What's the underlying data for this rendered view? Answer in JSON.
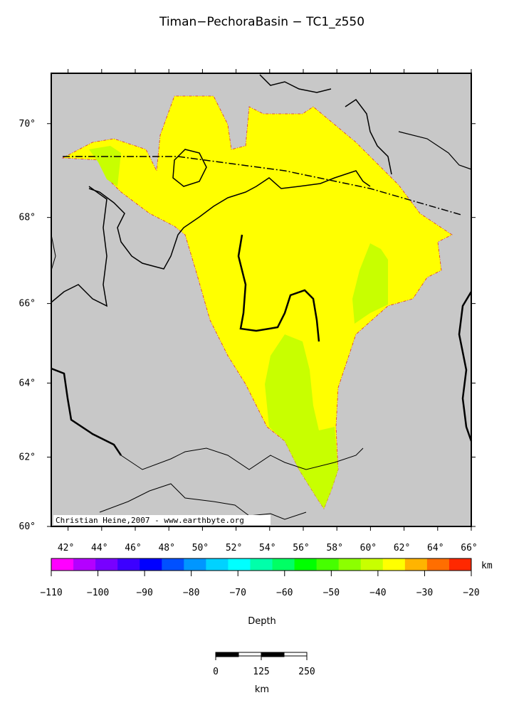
{
  "title": "Timan−PechoraBasin − TC1_z550",
  "map": {
    "xlim": [
      41,
      66
    ],
    "ylim": [
      60,
      71
    ],
    "lon_ticks": [
      {
        "value": 42,
        "label": "42°"
      },
      {
        "value": 44,
        "label": "44°"
      },
      {
        "value": 46,
        "label": "46°"
      },
      {
        "value": 48,
        "label": "48°"
      },
      {
        "value": 50,
        "label": "50°"
      },
      {
        "value": 52,
        "label": "52°"
      },
      {
        "value": 54,
        "label": "54°"
      },
      {
        "value": 56,
        "label": "56°"
      },
      {
        "value": 58,
        "label": "58°"
      },
      {
        "value": 60,
        "label": "60°"
      },
      {
        "value": 62,
        "label": "62°"
      },
      {
        "value": 64,
        "label": "64°"
      },
      {
        "value": 66,
        "label": "66°"
      }
    ],
    "lat_ticks": [
      {
        "value": 60,
        "label": "60°"
      },
      {
        "value": 62,
        "label": "62°"
      },
      {
        "value": 64,
        "label": "64°"
      },
      {
        "value": 66,
        "label": "66°"
      },
      {
        "value": 68,
        "label": "68°"
      },
      {
        "value": 70,
        "label": "70°"
      }
    ],
    "credit": "Christian Heine,2007 - www.earthbyte.org"
  },
  "colorbar": {
    "range": [
      -110,
      -20
    ],
    "colors": [
      "#ff00ff",
      "#b400ff",
      "#7800ff",
      "#3c00ff",
      "#0000ff",
      "#0050ff",
      "#0096ff",
      "#00d2ff",
      "#00ffff",
      "#00ffaa",
      "#00ff64",
      "#00ff00",
      "#46ff00",
      "#8cff00",
      "#c8ff00",
      "#ffff00",
      "#ffb400",
      "#ff6e00",
      "#ff2800"
    ],
    "ticks": [
      {
        "value": -110,
        "label": "−110"
      },
      {
        "value": -100,
        "label": "−100"
      },
      {
        "value": -90,
        "label": "−90"
      },
      {
        "value": -80,
        "label": "−80"
      },
      {
        "value": -70,
        "label": "−70"
      },
      {
        "value": -60,
        "label": "−60"
      },
      {
        "value": -50,
        "label": "−50"
      },
      {
        "value": -40,
        "label": "−40"
      },
      {
        "value": -30,
        "label": "−30"
      },
      {
        "value": -20,
        "label": "−20"
      }
    ],
    "unit": "km",
    "label": "Depth"
  },
  "scalebar": {
    "range": [
      0,
      250
    ],
    "ticks": [
      0,
      125,
      250
    ],
    "unit": "km"
  }
}
